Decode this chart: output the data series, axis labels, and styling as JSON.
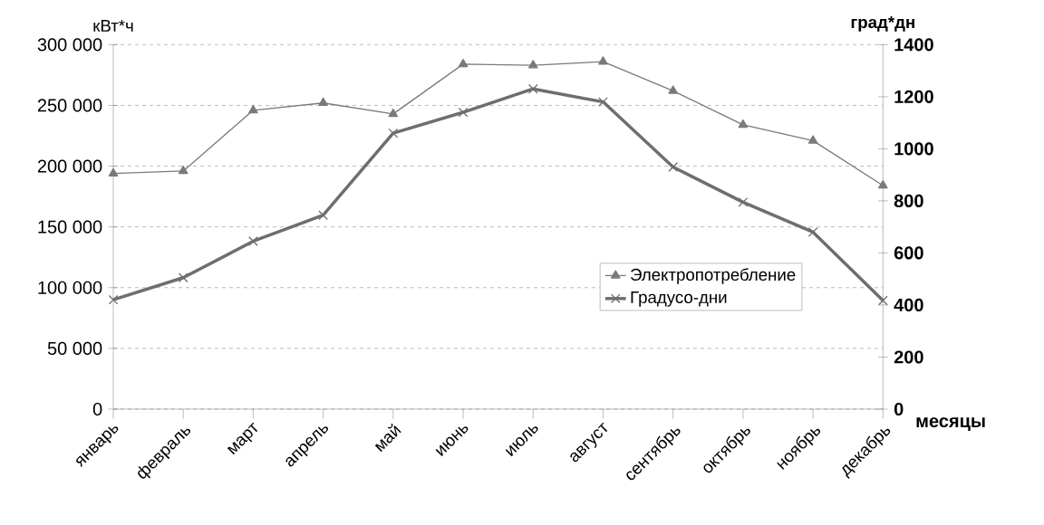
{
  "chart_data": {
    "type": "line",
    "categories": [
      "январь",
      "февраль",
      "март",
      "апрель",
      "май",
      "июнь",
      "июль",
      "август",
      "сентябрь",
      "октябрь",
      "ноябрь",
      "декабрь"
    ],
    "ylabel": "кВт*ч",
    "y2label": "град*дн",
    "xlabel": "месяцы",
    "series": [
      {
        "name": "Электропотребление",
        "color": "#7a7a7a",
        "marker": "triangle",
        "values": [
          194000,
          196000,
          246000,
          252000,
          243000,
          284000,
          283000,
          286000,
          262000,
          234000,
          221000,
          184000
        ]
      },
      {
        "name": "Градусо-дни",
        "color": "#6e6e6e",
        "marker": "cross",
        "axis": "y2",
        "values": [
          420,
          505,
          645,
          745,
          1060,
          1140,
          1230,
          1180,
          930,
          795,
          680,
          417
        ]
      }
    ],
    "ylim": [
      0,
      300000
    ],
    "yticks": [
      {
        "value": 0,
        "label": "0"
      },
      {
        "value": 50000,
        "label": "50 000"
      },
      {
        "value": 100000,
        "label": "100 000"
      },
      {
        "value": 150000,
        "label": "150 000"
      },
      {
        "value": 200000,
        "label": "200 000"
      },
      {
        "value": 250000,
        "label": "250 000"
      },
      {
        "value": 300000,
        "label": "300 000"
      }
    ],
    "y2lim": [
      0,
      1400
    ],
    "y2ticks": [
      0,
      200,
      400,
      600,
      800,
      1000,
      1200,
      1400
    ],
    "grid": "y",
    "legend": "right",
    "line_style": "solid"
  }
}
